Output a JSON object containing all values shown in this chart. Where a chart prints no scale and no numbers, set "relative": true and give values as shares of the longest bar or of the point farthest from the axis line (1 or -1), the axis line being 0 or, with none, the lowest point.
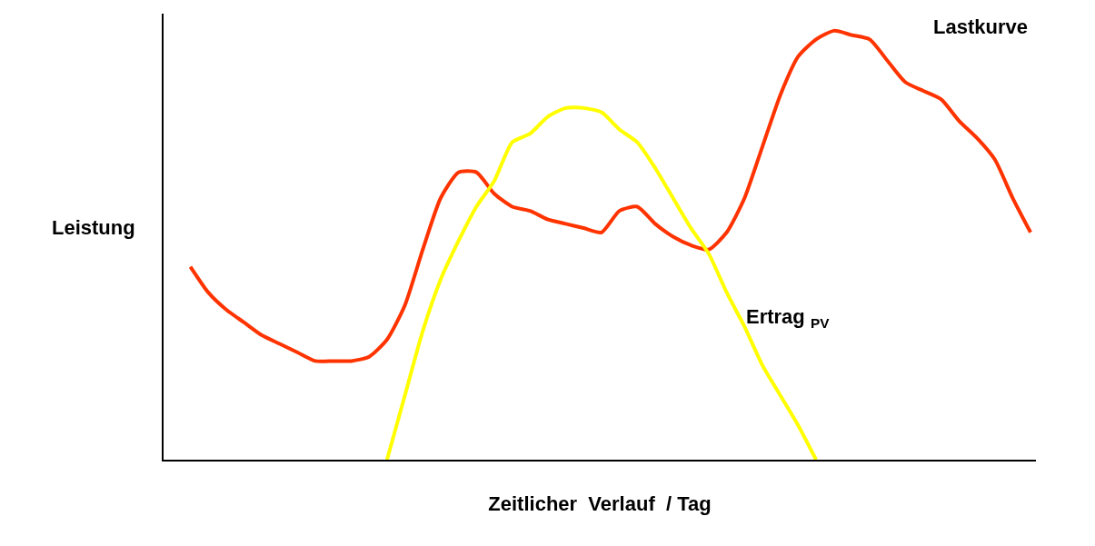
{
  "chart_data": {
    "type": "line",
    "relative": true,
    "xlabel": "Zeitlicher  Verlauf  / Tag",
    "ylabel": "Leistung",
    "categories": [
      null,
      null,
      null,
      null,
      null,
      null,
      null,
      null,
      null,
      null,
      null,
      null,
      null,
      null,
      null,
      null,
      null,
      null,
      null,
      null,
      null,
      null,
      null,
      null,
      null,
      null,
      null,
      null,
      null,
      null,
      null,
      null,
      null,
      null,
      null,
      null,
      null,
      null,
      null,
      null,
      null,
      null,
      null,
      null,
      null,
      null,
      null,
      null,
      null
    ],
    "series": [
      {
        "name": "Lastkurve",
        "color": "#ff3300",
        "values": [
          null,
          0.45,
          0.39,
          0.35,
          0.32,
          0.29,
          0.27,
          0.25,
          0.23,
          0.23,
          0.23,
          0.24,
          0.28,
          0.36,
          0.49,
          0.61,
          0.67,
          0.67,
          0.62,
          0.59,
          0.58,
          0.56,
          0.55,
          0.54,
          0.53,
          0.58,
          0.59,
          0.55,
          0.52,
          0.5,
          0.49,
          0.53,
          0.61,
          0.73,
          0.85,
          0.94,
          0.98,
          1.0,
          0.99,
          0.98,
          0.93,
          0.88,
          0.86,
          0.84,
          0.79,
          0.75,
          0.7,
          0.61,
          0.53
        ]
      },
      {
        "name": "Ertrag $_{PV}$",
        "color": "#ffff00",
        "values": [
          null,
          null,
          null,
          null,
          null,
          null,
          null,
          null,
          null,
          null,
          null,
          null,
          0,
          0.15,
          0.3,
          0.42,
          0.51,
          0.59,
          0.65,
          0.74,
          0.76,
          0.8,
          0.82,
          0.82,
          0.81,
          0.77,
          0.74,
          0.68,
          0.61,
          0.54,
          0.48,
          0.39,
          0.31,
          0.22,
          0.15,
          0.08,
          0,
          null,
          null,
          null,
          null,
          null,
          null,
          null,
          null,
          null,
          null,
          null,
          null
        ]
      }
    ],
    "legend": false,
    "marker": "none",
    "line_style": "solid"
  }
}
